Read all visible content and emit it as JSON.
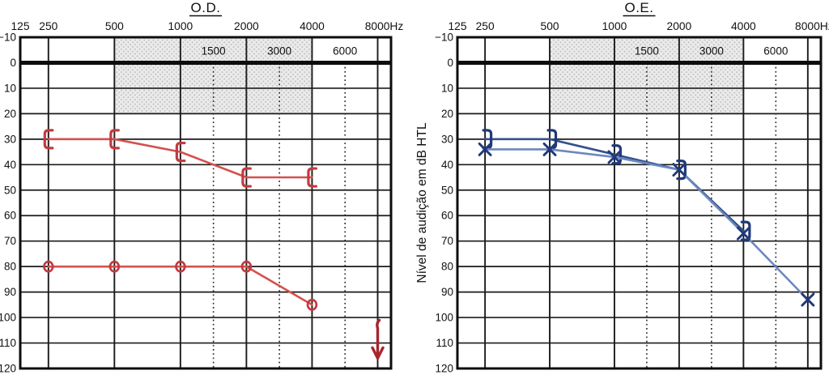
{
  "figure": {
    "background": "#ffffff",
    "description_names": [
      "audiogram-right-ear",
      "audiogram-left-ear"
    ]
  },
  "chart_data": [
    {
      "type": "line",
      "chart_kind": "audiogram",
      "title": "O.D.",
      "x_axis": {
        "unit": "Hz",
        "main_ticks": [
          125,
          250,
          500,
          1000,
          2000,
          4000,
          8000
        ],
        "main_labels": [
          "125",
          "250",
          "500",
          "1000",
          "2000",
          "4000",
          "8000Hz"
        ],
        "interleaved_ticks": [
          1500,
          3000,
          6000
        ],
        "interleaved_labels": [
          "1500",
          "3000",
          "6000"
        ]
      },
      "y_axis": {
        "label": "",
        "ticks": [
          -10,
          0,
          10,
          20,
          30,
          40,
          50,
          60,
          70,
          80,
          90,
          100,
          110,
          120
        ],
        "range": [
          -10,
          120
        ],
        "zero_reference_line_db": 0
      },
      "shaded_band": {
        "freq_from": 500,
        "freq_to": 4000,
        "db_from": -10,
        "db_to": 20
      },
      "grid": true,
      "legend_position": "none",
      "series": [
        {
          "name": "bone-conduction-right",
          "marker": "bracket-left",
          "marker_color": "#c33a3f",
          "line_color": "#d4504e",
          "connected": true,
          "points": [
            [
              250,
              30
            ],
            [
              500,
              30
            ],
            [
              1000,
              35
            ],
            [
              2000,
              45
            ],
            [
              4000,
              45
            ]
          ]
        },
        {
          "name": "air-conduction-right",
          "marker": "circle",
          "marker_color": "#c33a3f",
          "line_color": "#d4504e",
          "connected": true,
          "points": [
            [
              250,
              80
            ],
            [
              500,
              80
            ],
            [
              1000,
              80
            ],
            [
              2000,
              80
            ],
            [
              4000,
              95
            ]
          ]
        },
        {
          "name": "no-response-right",
          "marker": "down-arrow",
          "marker_color": "#a8242e",
          "line_color": "none",
          "connected": false,
          "arrow_length_db": 14,
          "points": [
            [
              8000,
              102
            ]
          ]
        }
      ]
    },
    {
      "type": "line",
      "chart_kind": "audiogram",
      "title": "O.E.",
      "x_axis": {
        "unit": "Hz",
        "main_ticks": [
          125,
          250,
          500,
          1000,
          2000,
          4000,
          8000
        ],
        "main_labels": [
          "125",
          "250",
          "500",
          "1000",
          "2000",
          "4000",
          "8000Hz"
        ],
        "interleaved_ticks": [
          1500,
          3000,
          6000
        ],
        "interleaved_labels": [
          "1500",
          "3000",
          "6000"
        ]
      },
      "y_axis": {
        "label": "Nível de audição em dB HTL",
        "ticks": [
          -10,
          0,
          10,
          20,
          30,
          40,
          50,
          60,
          70,
          80,
          90,
          100,
          110,
          120
        ],
        "range": [
          -10,
          120
        ],
        "zero_reference_line_db": 0
      },
      "shaded_band": {
        "freq_from": 500,
        "freq_to": 4000,
        "db_from": -10,
        "db_to": 20
      },
      "grid": true,
      "legend_position": "none",
      "series": [
        {
          "name": "bone-conduction-left",
          "marker": "bracket-right",
          "marker_color": "#20397b",
          "line_color": "#33518f",
          "connected": true,
          "points": [
            [
              250,
              30
            ],
            [
              500,
              30
            ],
            [
              1000,
              36
            ],
            [
              2000,
              42
            ],
            [
              4000,
              66
            ]
          ]
        },
        {
          "name": "air-conduction-left",
          "marker": "x",
          "marker_color": "#20397b",
          "line_color": "#6c89bd",
          "connected": true,
          "points": [
            [
              250,
              34
            ],
            [
              500,
              34
            ],
            [
              1000,
              37
            ],
            [
              2000,
              42
            ],
            [
              4000,
              67
            ],
            [
              8000,
              93
            ]
          ]
        }
      ]
    }
  ],
  "style_colors": {
    "grid_line": "#1b1b1b",
    "frame_line": "#0d0d0d",
    "zero_thick_line": "#0d0d0d",
    "shaded_band_bg": "#ebebeb",
    "shaded_band_dot": "#bfbfbf",
    "red_marker": "#c33a3f",
    "blue_marker": "#20397b"
  }
}
